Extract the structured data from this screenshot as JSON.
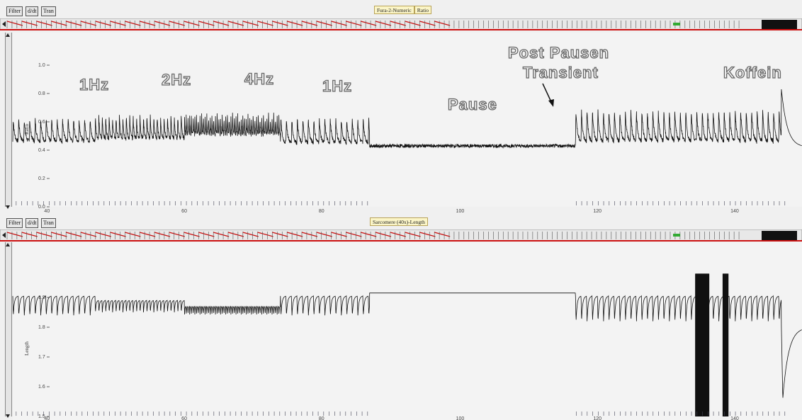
{
  "toolbar": {
    "filter_label": "Filter",
    "deriv_label": "d/dt",
    "tran_label": "Tran"
  },
  "panel_top": {
    "title_left": "Fura-2-Numeric",
    "title_right": "Ratio",
    "y_label": "Ratio",
    "y_ticks": [
      "1.0",
      "0.8",
      "0.6",
      "0.4",
      "0.2",
      "0.0"
    ],
    "x_ticks": [
      "40",
      "60",
      "80",
      "100",
      "120",
      "140"
    ],
    "annotations": {
      "hz1_a": "1Hz",
      "hz2": "2Hz",
      "hz4": "4Hz",
      "hz1_b": "1Hz",
      "pause": "Pause",
      "post_pausen": "Post Pausen",
      "transient": "Transient",
      "koffein": "Koffein"
    }
  },
  "panel_bottom": {
    "title": "Sarcomere (40x)-Length",
    "y_label": "Length",
    "y_ticks": [
      "1.9",
      "1.8",
      "1.7",
      "1.6",
      "1.5"
    ],
    "x_ticks": [
      "40",
      "60",
      "80",
      "100",
      "120",
      "140"
    ]
  },
  "chart_data": [
    {
      "type": "line",
      "title": "",
      "ylabel": "Ratio",
      "xlabel": "",
      "xlim": [
        35,
        150
      ],
      "ylim": [
        0.0,
        1.0
      ],
      "segments": [
        {
          "label": "1Hz",
          "x_range": [
            35,
            47
          ],
          "baseline": 0.46,
          "peak": 0.62
        },
        {
          "label": "2Hz",
          "x_range": [
            47,
            60
          ],
          "baseline": 0.48,
          "peak": 0.64
        },
        {
          "label": "4Hz",
          "x_range": [
            60,
            74
          ],
          "baseline": 0.51,
          "peak": 0.65
        },
        {
          "label": "1Hz",
          "x_range": [
            74,
            87
          ],
          "baseline": 0.45,
          "peak": 0.62
        },
        {
          "label": "Pause",
          "x_range": [
            87,
            117
          ],
          "baseline": 0.43,
          "peak": 0.45
        },
        {
          "label": "Post Pausen Transient",
          "x_range": [
            117,
            147
          ],
          "baseline": 0.46,
          "peak": 0.68
        },
        {
          "label": "Koffein",
          "x_range": [
            147,
            150
          ],
          "baseline": 0.42,
          "peak": 0.83
        }
      ]
    },
    {
      "type": "line",
      "title": "",
      "ylabel": "Length",
      "xlabel": "",
      "xlim": [
        35,
        150
      ],
      "ylim": [
        1.5,
        2.0
      ],
      "segments": [
        {
          "x_range": [
            35,
            47
          ],
          "baseline": 1.905,
          "trough": 1.84
        },
        {
          "x_range": [
            47,
            60
          ],
          "baseline": 1.89,
          "trough": 1.85
        },
        {
          "x_range": [
            60,
            74
          ],
          "baseline": 1.87,
          "trough": 1.84
        },
        {
          "x_range": [
            74,
            87
          ],
          "baseline": 1.905,
          "trough": 1.84
        },
        {
          "x_range": [
            87,
            117
          ],
          "baseline": 1.915,
          "trough": 1.915
        },
        {
          "x_range": [
            117,
            147
          ],
          "baseline": 1.905,
          "trough": 1.82
        },
        {
          "x_range": [
            147,
            150
          ],
          "baseline": 1.8,
          "trough": 1.56
        }
      ]
    }
  ]
}
